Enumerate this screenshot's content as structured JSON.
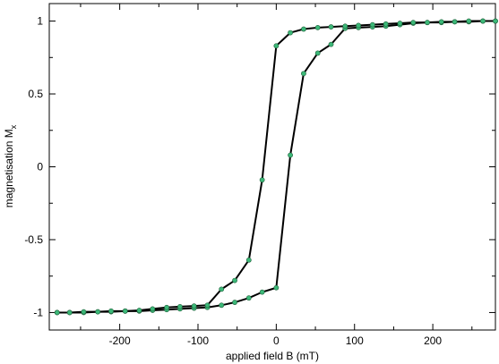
{
  "chart_data": {
    "type": "line",
    "title": "",
    "xlabel": "applied field B (mT)",
    "ylabel_main": "magnetisation M",
    "ylabel_sub": "x",
    "xlim": [
      -290,
      280
    ],
    "ylim": [
      -1.12,
      1.12
    ],
    "xticks": [
      -200,
      -100,
      0,
      100,
      200
    ],
    "xtick_labels": [
      "-200",
      "-100",
      "0",
      "100",
      "200"
    ],
    "yticks": [
      -1,
      -0.5,
      0,
      0.5,
      1
    ],
    "ytick_labels": [
      "-1",
      "-0.5",
      "0",
      "0.5",
      "1"
    ],
    "grid": false,
    "line_color": "#000000",
    "marker_color": "#3cb878",
    "series": [
      {
        "x": [
          -280,
          -264,
          -246,
          -228,
          -211,
          -193,
          -175,
          -158,
          -140,
          -123,
          -105,
          -88,
          -70,
          -53,
          -35,
          -18,
          0,
          18,
          35,
          53,
          70,
          88,
          105,
          123,
          140,
          158,
          175,
          193,
          211,
          228,
          246,
          264,
          280
        ],
        "y": [
          -1.0,
          -1.0,
          -1.0,
          -0.995,
          -0.995,
          -0.99,
          -0.99,
          -0.985,
          -0.98,
          -0.975,
          -0.97,
          -0.965,
          -0.95,
          -0.93,
          -0.9,
          -0.86,
          -0.83,
          0.08,
          0.64,
          0.78,
          0.84,
          0.95,
          0.955,
          0.96,
          0.965,
          0.975,
          0.985,
          0.99,
          0.99,
          0.995,
          0.995,
          1.0,
          1.0
        ]
      },
      {
        "x": [
          280,
          264,
          246,
          228,
          211,
          193,
          175,
          158,
          140,
          123,
          105,
          88,
          70,
          53,
          35,
          18,
          0,
          -18,
          -35,
          -53,
          -70,
          -88,
          -105,
          -123,
          -140,
          -158,
          -175,
          -193,
          -211,
          -228,
          -246,
          -264,
          -280
        ],
        "y": [
          1.0,
          1.0,
          1.0,
          0.995,
          0.995,
          0.99,
          0.99,
          0.985,
          0.98,
          0.975,
          0.97,
          0.965,
          0.96,
          0.955,
          0.945,
          0.92,
          0.83,
          -0.09,
          -0.64,
          -0.78,
          -0.84,
          -0.95,
          -0.955,
          -0.96,
          -0.965,
          -0.975,
          -0.985,
          -0.99,
          -0.99,
          -0.995,
          -0.995,
          -1.0,
          -1.0
        ]
      }
    ]
  }
}
